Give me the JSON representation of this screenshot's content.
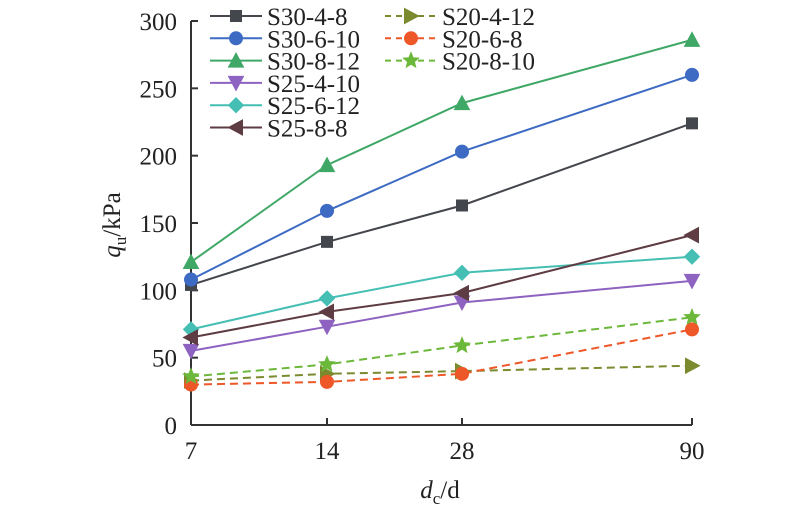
{
  "chart_data": {
    "type": "line",
    "title": "",
    "xlabel": {
      "italic": "d",
      "sub": "c",
      "rest": "/d"
    },
    "ylabel": {
      "italic": "q",
      "sub": "u",
      "rest": "/kPa"
    },
    "x": [
      "7",
      "14",
      "28",
      "90"
    ],
    "ylim": [
      0,
      300
    ],
    "yticks": [
      "0",
      "50",
      "100",
      "150",
      "200",
      "250",
      "300"
    ],
    "ytick_values": [
      0,
      50,
      100,
      150,
      200,
      250,
      300
    ],
    "grid": false,
    "legend_position": "top-left",
    "series": [
      {
        "name": "S30-4-8",
        "values": [
          104,
          136,
          163,
          224
        ],
        "color": "#44464d",
        "marker": "square",
        "dash": false
      },
      {
        "name": "S30-6-10",
        "values": [
          108,
          159,
          203,
          260
        ],
        "color": "#3d6bc4",
        "marker": "circle",
        "dash": false
      },
      {
        "name": "S30-8-12",
        "values": [
          121,
          193,
          239,
          286
        ],
        "color": "#3fa866",
        "marker": "triangle-up",
        "dash": false
      },
      {
        "name": "S25-4-10",
        "values": [
          55,
          73,
          91,
          107
        ],
        "color": "#8e62c0",
        "marker": "triangle-down",
        "dash": false
      },
      {
        "name": "S25-6-12",
        "values": [
          71,
          94,
          113,
          125
        ],
        "color": "#45bfb4",
        "marker": "diamond",
        "dash": false
      },
      {
        "name": "S25-8-8",
        "values": [
          65,
          84,
          98,
          141
        ],
        "color": "#5e3c43",
        "marker": "triangle-left",
        "dash": false
      },
      {
        "name": "S20-4-12",
        "values": [
          33,
          38,
          40,
          44
        ],
        "color": "#7b8a2e",
        "marker": "triangle-right",
        "dash": true
      },
      {
        "name": "S20-6-8",
        "values": [
          30,
          32,
          38,
          71
        ],
        "color": "#ee5728",
        "marker": "circle",
        "dash": true
      },
      {
        "name": "S20-8-10",
        "values": [
          36,
          45,
          59,
          80
        ],
        "color": "#6cb83a",
        "marker": "star",
        "dash": true
      }
    ]
  }
}
